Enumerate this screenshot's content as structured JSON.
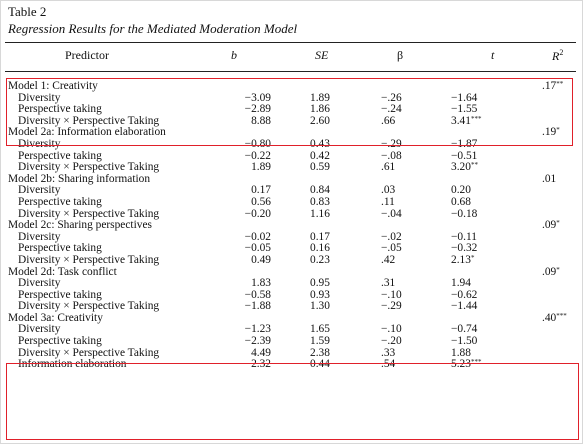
{
  "table": {
    "number": "Table 2",
    "title": "Regression Results for the Mediated Moderation Model",
    "headers": {
      "predictor": "Predictor",
      "b": "b",
      "se": "SE",
      "beta": "β",
      "t": "t",
      "r2": "R",
      "r2_sup": "2"
    },
    "rows": [
      {
        "kind": "model",
        "label": "Model 1: Creativity",
        "b": "",
        "se": "",
        "beta": "",
        "t": "",
        "t_sig": "",
        "r2": ".17",
        "r2_sig": "**"
      },
      {
        "kind": "item",
        "label": "Diversity",
        "b": "−3.09",
        "se": "1.89",
        "beta": "−.26",
        "t": "−1.64",
        "t_sig": "",
        "r2": "",
        "r2_sig": ""
      },
      {
        "kind": "item",
        "label": "Perspective taking",
        "b": "−2.89",
        "se": "1.86",
        "beta": "−.24",
        "t": "−1.55",
        "t_sig": "",
        "r2": "",
        "r2_sig": ""
      },
      {
        "kind": "item",
        "label": "Diversity × Perspective Taking",
        "b": "8.88",
        "se": "2.60",
        "beta": ".66",
        "t": "3.41",
        "t_sig": "***",
        "r2": "",
        "r2_sig": ""
      },
      {
        "kind": "model",
        "label": "Model 2a: Information elaboration",
        "b": "",
        "se": "",
        "beta": "",
        "t": "",
        "t_sig": "",
        "r2": ".19",
        "r2_sig": "*"
      },
      {
        "kind": "item",
        "label": "Diversity",
        "b": "−0.80",
        "se": "0.43",
        "beta": "−.29",
        "t": "−1.87",
        "t_sig": "",
        "r2": "",
        "r2_sig": ""
      },
      {
        "kind": "item",
        "label": "Perspective taking",
        "b": "−0.22",
        "se": "0.42",
        "beta": "−.08",
        "t": "−0.51",
        "t_sig": "",
        "r2": "",
        "r2_sig": ""
      },
      {
        "kind": "item",
        "label": "Diversity × Perspective Taking",
        "b": "1.89",
        "se": "0.59",
        "beta": ".61",
        "t": "3.20",
        "t_sig": "**",
        "r2": "",
        "r2_sig": ""
      },
      {
        "kind": "model",
        "label": "Model 2b: Sharing information",
        "b": "",
        "se": "",
        "beta": "",
        "t": "",
        "t_sig": "",
        "r2": ".01",
        "r2_sig": ""
      },
      {
        "kind": "item",
        "label": "Diversity",
        "b": "0.17",
        "se": "0.84",
        "beta": ".03",
        "t": "0.20",
        "t_sig": "",
        "r2": "",
        "r2_sig": ""
      },
      {
        "kind": "item",
        "label": "Perspective taking",
        "b": "0.56",
        "se": "0.83",
        "beta": ".11",
        "t": "0.68",
        "t_sig": "",
        "r2": "",
        "r2_sig": ""
      },
      {
        "kind": "item",
        "label": "Diversity × Perspective Taking",
        "b": "−0.20",
        "se": "1.16",
        "beta": "−.04",
        "t": "−0.18",
        "t_sig": "",
        "r2": "",
        "r2_sig": ""
      },
      {
        "kind": "model",
        "label": "Model 2c: Sharing perspectives",
        "b": "",
        "se": "",
        "beta": "",
        "t": "",
        "t_sig": "",
        "r2": ".09",
        "r2_sig": "*"
      },
      {
        "kind": "item",
        "label": "Diversity",
        "b": "−0.02",
        "se": "0.17",
        "beta": "−.02",
        "t": "−0.11",
        "t_sig": "",
        "r2": "",
        "r2_sig": ""
      },
      {
        "kind": "item",
        "label": "Perspective taking",
        "b": "−0.05",
        "se": "0.16",
        "beta": "−.05",
        "t": "−0.32",
        "t_sig": "",
        "r2": "",
        "r2_sig": ""
      },
      {
        "kind": "item",
        "label": "Diversity × Perspective Taking",
        "b": "0.49",
        "se": "0.23",
        "beta": ".42",
        "t": "2.13",
        "t_sig": "*",
        "r2": "",
        "r2_sig": ""
      },
      {
        "kind": "model",
        "label": "Model 2d: Task conflict",
        "b": "",
        "se": "",
        "beta": "",
        "t": "",
        "t_sig": "",
        "r2": ".09",
        "r2_sig": "*"
      },
      {
        "kind": "item",
        "label": "Diversity",
        "b": "1.83",
        "se": "0.95",
        "beta": ".31",
        "t": "1.94",
        "t_sig": "",
        "r2": "",
        "r2_sig": ""
      },
      {
        "kind": "item",
        "label": "Perspective taking",
        "b": "−0.58",
        "se": "0.93",
        "beta": "−.10",
        "t": "−0.62",
        "t_sig": "",
        "r2": "",
        "r2_sig": ""
      },
      {
        "kind": "item",
        "label": "Diversity × Perspective Taking",
        "b": "−1.88",
        "se": "1.30",
        "beta": "−.29",
        "t": "−1.44",
        "t_sig": "",
        "r2": "",
        "r2_sig": ""
      },
      {
        "kind": "model",
        "label": "Model 3a: Creativity",
        "b": "",
        "se": "",
        "beta": "",
        "t": "",
        "t_sig": "",
        "r2": ".40",
        "r2_sig": "***"
      },
      {
        "kind": "item",
        "label": "Diversity",
        "b": "−1.23",
        "se": "1.65",
        "beta": "−.10",
        "t": "−0.74",
        "t_sig": "",
        "r2": "",
        "r2_sig": ""
      },
      {
        "kind": "item",
        "label": "Perspective taking",
        "b": "−2.39",
        "se": "1.59",
        "beta": "−.20",
        "t": "−1.50",
        "t_sig": "",
        "r2": "",
        "r2_sig": ""
      },
      {
        "kind": "item",
        "label": "Diversity × Perspective Taking",
        "b": "4.49",
        "se": "2.38",
        "beta": ".33",
        "t": "1.88",
        "t_sig": "",
        "r2": "",
        "r2_sig": ""
      },
      {
        "kind": "item",
        "label": "Information elaboration",
        "b": "2.32",
        "se": "0.44",
        "beta": ".54",
        "t": "5.23",
        "t_sig": "***",
        "r2": "",
        "r2_sig": ""
      }
    ]
  },
  "colors": {
    "highlight": "#e0202a",
    "text": "#111111"
  }
}
